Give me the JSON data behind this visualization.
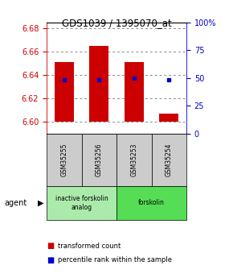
{
  "title": "GDS1039 / 1395070_at",
  "samples": [
    "GSM35255",
    "GSM35256",
    "GSM35253",
    "GSM35254"
  ],
  "bar_bottoms": [
    6.6,
    6.6,
    6.6,
    6.6
  ],
  "bar_tops": [
    6.651,
    6.665,
    6.651,
    6.607
  ],
  "percentile_values": [
    6.636,
    6.636,
    6.637,
    6.636
  ],
  "ylim_left": [
    6.59,
    6.685
  ],
  "ylim_right": [
    0,
    100
  ],
  "yticks_left": [
    6.6,
    6.62,
    6.64,
    6.66,
    6.68
  ],
  "yticks_right": [
    0,
    25,
    50,
    75,
    100
  ],
  "ytick_right_labels": [
    "0",
    "25",
    "50",
    "75",
    "100%"
  ],
  "bar_color": "#cc0000",
  "dot_color": "#0000cc",
  "left_tick_color": "#cc0000",
  "right_tick_color": "#0000cc",
  "grid_color": "#888888",
  "group_spans": [
    [
      0,
      1,
      "inactive forskolin\nanalog",
      "#aaeaaa"
    ],
    [
      2,
      3,
      "forskolin",
      "#55dd55"
    ]
  ],
  "sample_box_color": "#cccccc",
  "agent_label": "agent"
}
